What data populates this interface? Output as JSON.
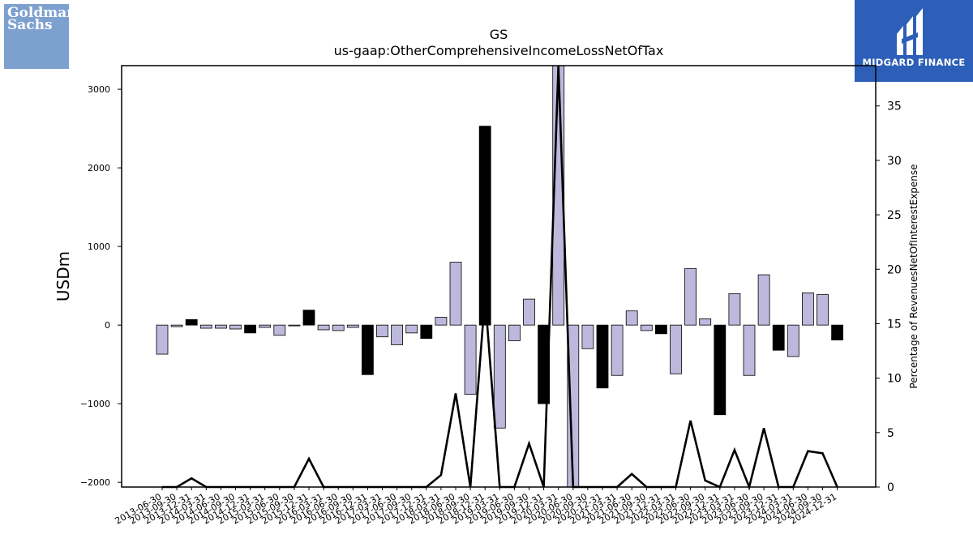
{
  "logos": {
    "left": {
      "name": "goldman-sachs-logo",
      "text_line1": "Goldman",
      "text_line2": "Sachs"
    },
    "right": {
      "name": "midgard-finance-logo",
      "text": "MIDGARD FINANCE"
    }
  },
  "chart_data": {
    "type": "bar",
    "title": "GS",
    "subtitle": "us-gaap:OtherComprehensiveIncomeLossNetOfTax",
    "ylabel": "USDm",
    "y2label": "Percentage of RevenuesNetOfInterestExpense",
    "ylim": [
      -2060,
      3300
    ],
    "y2lim": [
      0,
      38.7
    ],
    "yticks": [
      -2000,
      -1000,
      0,
      1000,
      2000,
      3000
    ],
    "y2ticks": [
      0,
      5,
      10,
      15,
      20,
      25,
      30,
      35
    ],
    "grid": false,
    "colors": {
      "positive_quarter": "#bcb9dc",
      "fiscal_year_end": "#000000",
      "line": "#000000"
    },
    "categories": [
      "2013-06-30",
      "2013-09-30",
      "2013-12-31",
      "2014-03-31",
      "2014-06-30",
      "2014-09-30",
      "2014-12-31",
      "2015-03-31",
      "2015-06-30",
      "2015-09-30",
      "2015-12-31",
      "2016-03-31",
      "2016-06-30",
      "2016-09-30",
      "2016-12-31",
      "2017-03-31",
      "2017-06-30",
      "2017-09-30",
      "2017-12-31",
      "2018-03-31",
      "2018-06-30",
      "2018-09-30",
      "2018-12-31",
      "2019-03-31",
      "2019-06-30",
      "2019-09-30",
      "2019-12-31",
      "2020-03-31",
      "2020-06-30",
      "2020-09-30",
      "2020-12-31",
      "2021-03-31",
      "2021-06-30",
      "2021-09-30",
      "2021-12-31",
      "2022-03-31",
      "2022-06-30",
      "2022-09-30",
      "2022-12-31",
      "2023-03-31",
      "2023-06-30",
      "2023-09-30",
      "2023-12-31",
      "2024-03-31",
      "2024-06-30",
      "2024-09-30",
      "2024-12-31"
    ],
    "series": [
      {
        "type": "bar",
        "values": [
          -370,
          -20,
          70,
          -40,
          -40,
          -50,
          -100,
          -30,
          -130,
          -10,
          190,
          -60,
          -70,
          -30,
          -630,
          -150,
          -250,
          -100,
          -170,
          100,
          800,
          -880,
          2530,
          -1310,
          -200,
          330,
          -1000,
          3300,
          -2060,
          -300,
          -800,
          -640,
          180,
          -70,
          -110,
          -620,
          720,
          80,
          -1140,
          400,
          -640,
          640,
          -320,
          -400,
          410,
          390,
          -190
        ]
      },
      {
        "type": "line",
        "axis": "right",
        "values": [
          0,
          0,
          0.8,
          0,
          0,
          0,
          0,
          0,
          0,
          0,
          2.6,
          0,
          0,
          0,
          0,
          0,
          0,
          0,
          0,
          1.1,
          8.6,
          0,
          17.5,
          0,
          0,
          4,
          0,
          38.7,
          0,
          0,
          0,
          0,
          1.2,
          0,
          0,
          0,
          6.1,
          0.6,
          0,
          3.4,
          0,
          5.4,
          0,
          0,
          3.3,
          3.1,
          0
        ]
      }
    ]
  }
}
